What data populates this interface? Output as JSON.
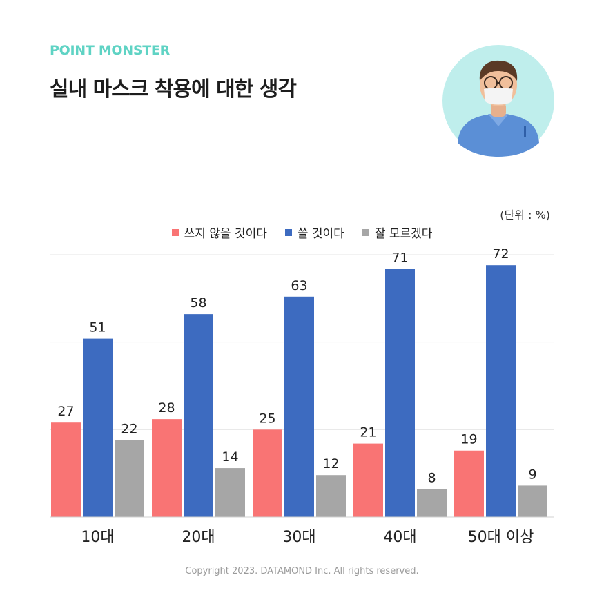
{
  "brand": "POINT MONSTER",
  "colors": {
    "brand": "#5fd3c4",
    "series1": "#f97474",
    "series2": "#3d6bc0",
    "series3": "#a6a6a6"
  },
  "unit_label": "(단위 : %)",
  "copyright": "Copyright 2023. DATAMOND Inc. All rights reserved.",
  "avatar_icon": "person-with-mask-icon",
  "chart_data": {
    "type": "bar",
    "title": "실내 마스크 착용에 대한 생각",
    "categories": [
      "10대",
      "20대",
      "30대",
      "40대",
      "50대 이상"
    ],
    "series": [
      {
        "name": "쓰지 않을 것이다",
        "values": [
          27,
          28,
          25,
          21,
          19
        ]
      },
      {
        "name": "쓸 것이다",
        "values": [
          51,
          58,
          63,
          71,
          72
        ]
      },
      {
        "name": "잘 모르겠다",
        "values": [
          22,
          14,
          12,
          8,
          9
        ]
      }
    ],
    "ylim": [
      0,
      75
    ],
    "grid": true,
    "legend": "top-center"
  }
}
